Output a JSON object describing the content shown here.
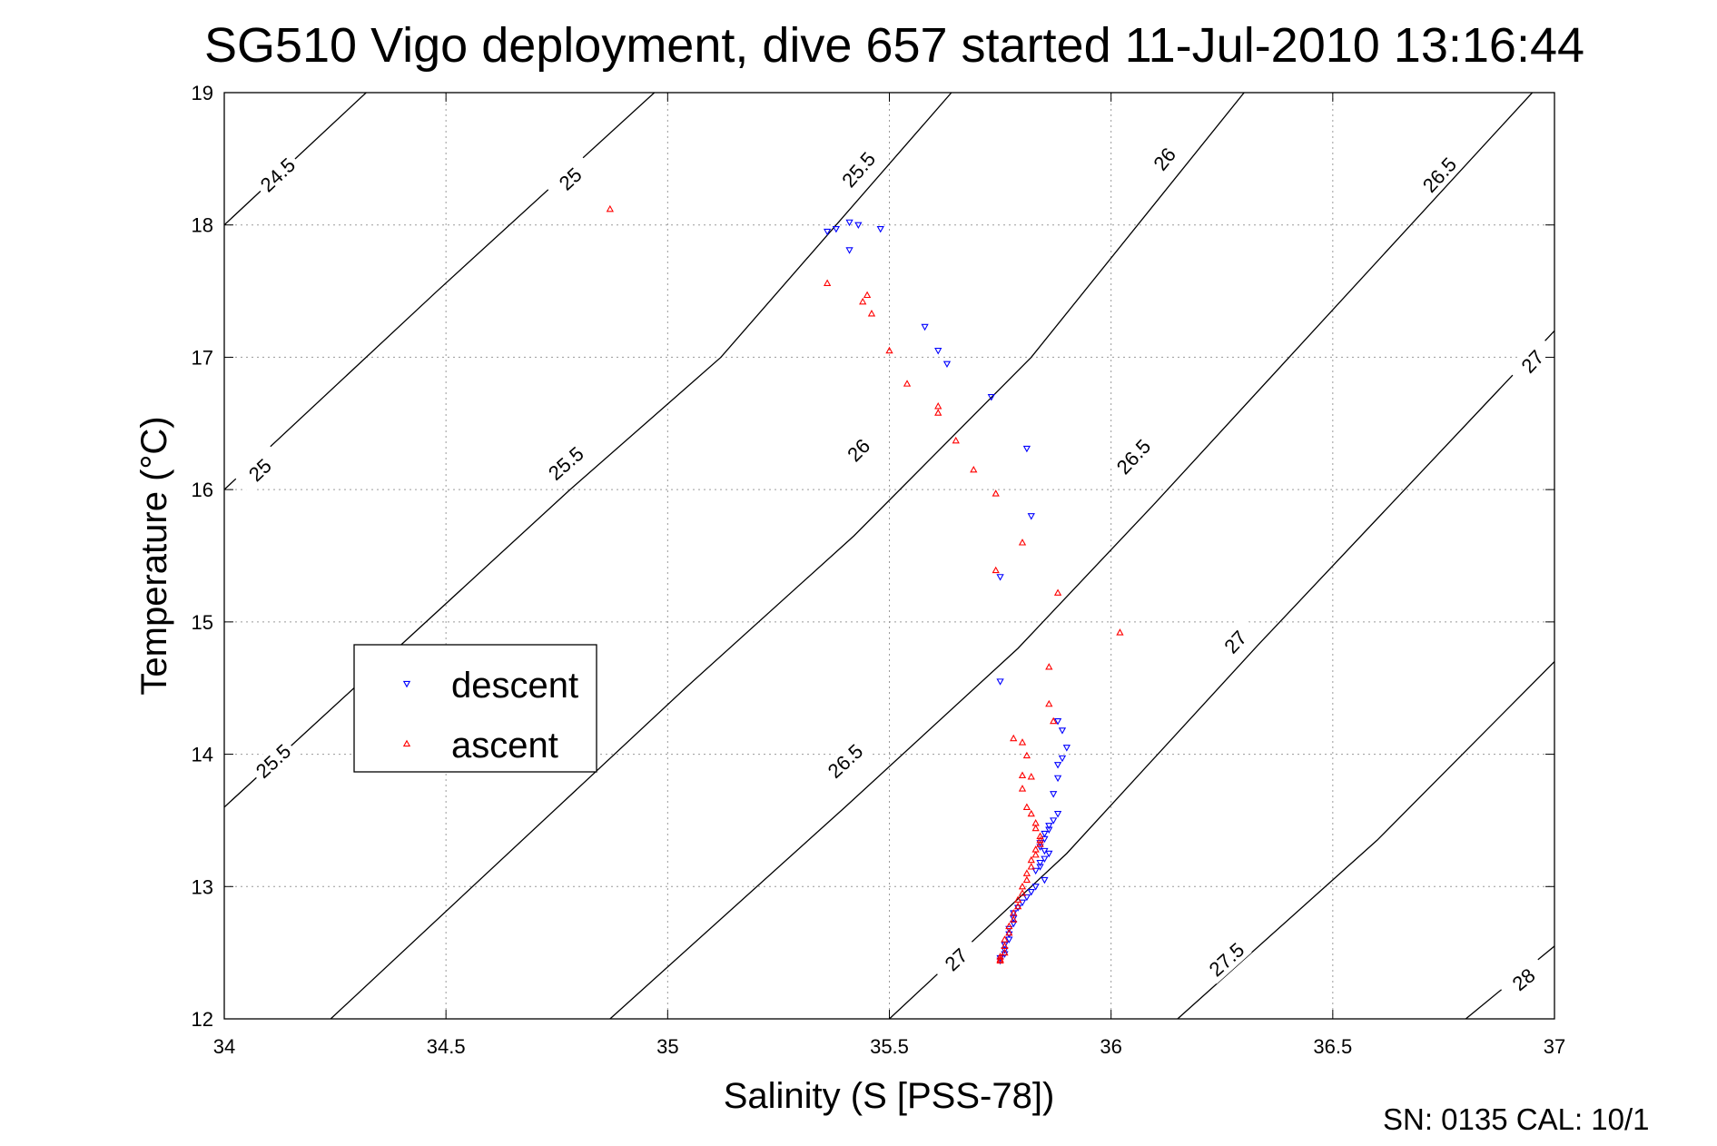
{
  "chart_data": {
    "type": "scatter",
    "title": "SG510 Vigo deployment, dive 657 started 11-Jul-2010 13:16:44",
    "xlabel": "Salinity (S [PSS-78])",
    "ylabel": "Temperature (°C)",
    "xlim": [
      34,
      37
    ],
    "ylim": [
      12,
      19
    ],
    "xticks": [
      34,
      34.5,
      35,
      35.5,
      36,
      36.5,
      37
    ],
    "xtick_labels": [
      "34",
      "34.5",
      "35",
      "35.5",
      "36",
      "36.5",
      "37"
    ],
    "yticks": [
      12,
      13,
      14,
      15,
      16,
      17,
      18,
      19
    ],
    "ytick_labels": [
      "12",
      "13",
      "14",
      "15",
      "16",
      "17",
      "18",
      "19"
    ],
    "grid": true,
    "legend_position": "center-left",
    "footer": "SN: 0135  CAL: 10/1",
    "colors": {
      "descent": "#0000ff",
      "ascent": "#ff0000",
      "contour": "#000000"
    },
    "contours": [
      {
        "sigma": "24.5",
        "points": [
          [
            34.0,
            18.0
          ],
          [
            34.32,
            19.0
          ]
        ],
        "labels": [
          [
            34.12,
            18.38
          ]
        ]
      },
      {
        "sigma": "25",
        "points": [
          [
            34.0,
            16.0
          ],
          [
            34.48,
            17.5
          ],
          [
            34.97,
            19.0
          ]
        ],
        "labels": [
          [
            34.08,
            16.15
          ],
          [
            34.78,
            18.35
          ]
        ]
      },
      {
        "sigma": "25.5",
        "points": [
          [
            34.0,
            13.6
          ],
          [
            34.78,
            16.0
          ],
          [
            35.12,
            17.0
          ],
          [
            35.64,
            19.0
          ]
        ],
        "labels": [
          [
            34.11,
            13.95
          ],
          [
            34.77,
            16.2
          ],
          [
            35.43,
            18.42
          ]
        ]
      },
      {
        "sigma": "26",
        "points": [
          [
            34.24,
            12.0
          ],
          [
            35.04,
            14.5
          ],
          [
            35.42,
            15.65
          ],
          [
            35.82,
            17.0
          ],
          [
            36.3,
            19.0
          ]
        ],
        "labels": [
          [
            35.43,
            16.3
          ],
          [
            36.12,
            18.5
          ]
        ]
      },
      {
        "sigma": "26.5",
        "points": [
          [
            34.87,
            12.0
          ],
          [
            35.4,
            13.6
          ],
          [
            35.79,
            14.8
          ],
          [
            36.1,
            15.9
          ],
          [
            36.95,
            19.0
          ]
        ],
        "labels": [
          [
            35.4,
            13.95
          ],
          [
            36.05,
            16.25
          ],
          [
            36.74,
            18.38
          ]
        ]
      },
      {
        "sigma": "27",
        "points": [
          [
            35.5,
            12.0
          ],
          [
            35.9,
            13.25
          ],
          [
            36.33,
            14.82
          ],
          [
            37.0,
            17.2
          ]
        ],
        "labels": [
          [
            35.65,
            12.45
          ],
          [
            36.28,
            14.85
          ],
          [
            36.95,
            16.97
          ]
        ]
      },
      {
        "sigma": "27.5",
        "points": [
          [
            36.15,
            12.0
          ],
          [
            36.6,
            13.35
          ],
          [
            37.0,
            14.7
          ]
        ],
        "labels": [
          [
            36.26,
            12.45
          ]
        ]
      },
      {
        "sigma": "28",
        "points": [
          [
            36.8,
            12.0
          ],
          [
            37.0,
            12.55
          ]
        ],
        "labels": [
          [
            36.93,
            12.3
          ]
        ]
      }
    ],
    "series": [
      {
        "name": "descent",
        "marker": "triangle-down",
        "points": [
          [
            35.36,
            17.95
          ],
          [
            35.38,
            17.97
          ],
          [
            35.41,
            18.02
          ],
          [
            35.43,
            18.0
          ],
          [
            35.48,
            17.97
          ],
          [
            35.41,
            17.81
          ],
          [
            35.58,
            17.23
          ],
          [
            35.61,
            17.05
          ],
          [
            35.63,
            16.95
          ],
          [
            35.73,
            16.7
          ],
          [
            35.81,
            16.31
          ],
          [
            35.82,
            15.8
          ],
          [
            35.75,
            15.34
          ],
          [
            35.75,
            14.55
          ],
          [
            35.88,
            14.25
          ],
          [
            35.89,
            14.18
          ],
          [
            35.9,
            14.05
          ],
          [
            35.89,
            13.97
          ],
          [
            35.88,
            13.92
          ],
          [
            35.88,
            13.82
          ],
          [
            35.87,
            13.7
          ],
          [
            35.88,
            13.55
          ],
          [
            35.87,
            13.5
          ],
          [
            35.86,
            13.46
          ],
          [
            35.86,
            13.43
          ],
          [
            35.85,
            13.4
          ],
          [
            35.85,
            13.36
          ],
          [
            35.84,
            13.33
          ],
          [
            35.84,
            13.3
          ],
          [
            35.85,
            13.27
          ],
          [
            35.86,
            13.25
          ],
          [
            35.85,
            13.21
          ],
          [
            35.84,
            13.18
          ],
          [
            35.84,
            13.15
          ],
          [
            35.83,
            13.12
          ],
          [
            35.85,
            13.05
          ],
          [
            35.83,
            13.0
          ],
          [
            35.82,
            12.96
          ],
          [
            35.81,
            12.92
          ],
          [
            35.8,
            12.88
          ],
          [
            35.79,
            12.84
          ],
          [
            35.78,
            12.8
          ],
          [
            35.78,
            12.76
          ],
          [
            35.78,
            12.72
          ],
          [
            35.77,
            12.68
          ],
          [
            35.77,
            12.64
          ],
          [
            35.77,
            12.6
          ],
          [
            35.76,
            12.56
          ],
          [
            35.76,
            12.52
          ],
          [
            35.76,
            12.49
          ],
          [
            35.75,
            12.46
          ],
          [
            35.75,
            12.44
          ]
        ]
      },
      {
        "name": "ascent",
        "marker": "triangle-up",
        "points": [
          [
            34.87,
            18.12
          ],
          [
            35.36,
            17.56
          ],
          [
            35.45,
            17.47
          ],
          [
            35.44,
            17.42
          ],
          [
            35.46,
            17.33
          ],
          [
            35.5,
            17.05
          ],
          [
            35.54,
            16.8
          ],
          [
            35.61,
            16.63
          ],
          [
            35.61,
            16.58
          ],
          [
            35.65,
            16.37
          ],
          [
            35.69,
            16.15
          ],
          [
            35.74,
            15.97
          ],
          [
            35.8,
            15.6
          ],
          [
            35.74,
            15.39
          ],
          [
            35.88,
            15.22
          ],
          [
            36.02,
            14.92
          ],
          [
            35.86,
            14.66
          ],
          [
            35.86,
            14.38
          ],
          [
            35.87,
            14.25
          ],
          [
            35.78,
            14.12
          ],
          [
            35.8,
            14.09
          ],
          [
            35.81,
            13.99
          ],
          [
            35.8,
            13.84
          ],
          [
            35.82,
            13.83
          ],
          [
            35.8,
            13.74
          ],
          [
            35.81,
            13.6
          ],
          [
            35.82,
            13.55
          ],
          [
            35.83,
            13.48
          ],
          [
            35.83,
            13.44
          ],
          [
            35.84,
            13.38
          ],
          [
            35.84,
            13.35
          ],
          [
            35.84,
            13.32
          ],
          [
            35.83,
            13.28
          ],
          [
            35.83,
            13.24
          ],
          [
            35.82,
            13.2
          ],
          [
            35.82,
            13.15
          ],
          [
            35.81,
            13.1
          ],
          [
            35.81,
            13.05
          ],
          [
            35.8,
            13.0
          ],
          [
            35.8,
            12.95
          ],
          [
            35.79,
            12.9
          ],
          [
            35.79,
            12.85
          ],
          [
            35.78,
            12.8
          ],
          [
            35.78,
            12.75
          ],
          [
            35.77,
            12.7
          ],
          [
            35.77,
            12.65
          ],
          [
            35.76,
            12.6
          ],
          [
            35.76,
            12.55
          ],
          [
            35.76,
            12.5
          ],
          [
            35.75,
            12.47
          ],
          [
            35.75,
            12.45
          ],
          [
            35.75,
            12.44
          ]
        ]
      }
    ]
  }
}
